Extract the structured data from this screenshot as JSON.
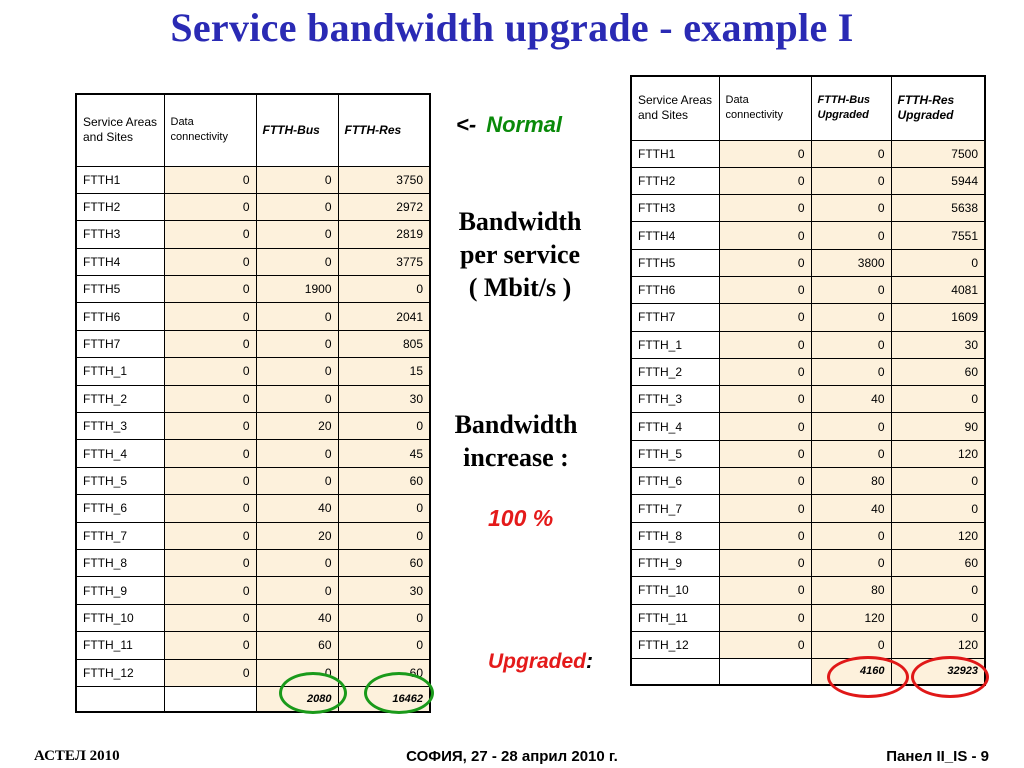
{
  "title": "Service bandwidth upgrade - example I",
  "left_table": {
    "headers": [
      "Service Areas and Sites",
      "Data connectivity",
      "FTTH-Bus",
      "FTTH-Res"
    ],
    "rows": [
      [
        "FTTH1",
        "0",
        "0",
        "3750"
      ],
      [
        "FTTH2",
        "0",
        "0",
        "2972"
      ],
      [
        "FTTH3",
        "0",
        "0",
        "2819"
      ],
      [
        "FTTH4",
        "0",
        "0",
        "3775"
      ],
      [
        "FTTH5",
        "0",
        "1900",
        "0"
      ],
      [
        "FTTH6",
        "0",
        "0",
        "2041"
      ],
      [
        "FTTH7",
        "0",
        "0",
        "805"
      ],
      [
        "FTTH_1",
        "0",
        "0",
        "15"
      ],
      [
        "FTTH_2",
        "0",
        "0",
        "30"
      ],
      [
        "FTTH_3",
        "0",
        "20",
        "0"
      ],
      [
        "FTTH_4",
        "0",
        "0",
        "45"
      ],
      [
        "FTTH_5",
        "0",
        "0",
        "60"
      ],
      [
        "FTTH_6",
        "0",
        "40",
        "0"
      ],
      [
        "FTTH_7",
        "0",
        "20",
        "0"
      ],
      [
        "FTTH_8",
        "0",
        "0",
        "60"
      ],
      [
        "FTTH_9",
        "0",
        "0",
        "30"
      ],
      [
        "FTTH_10",
        "0",
        "40",
        "0"
      ],
      [
        "FTTH_11",
        "0",
        "60",
        "0"
      ],
      [
        "FTTH_12",
        "0",
        "0",
        "60"
      ]
    ],
    "totals": [
      "",
      "",
      "2080",
      "16462"
    ]
  },
  "right_table": {
    "headers": [
      "Service Areas and Sites",
      "Data connectivity",
      "FTTH-Bus Upgraded",
      "FTTH-Res Upgraded"
    ],
    "rows": [
      [
        "FTTH1",
        "0",
        "0",
        "7500"
      ],
      [
        "FTTH2",
        "0",
        "0",
        "5944"
      ],
      [
        "FTTH3",
        "0",
        "0",
        "5638"
      ],
      [
        "FTTH4",
        "0",
        "0",
        "7551"
      ],
      [
        "FTTH5",
        "0",
        "3800",
        "0"
      ],
      [
        "FTTH6",
        "0",
        "0",
        "4081"
      ],
      [
        "FTTH7",
        "0",
        "0",
        "1609"
      ],
      [
        "FTTH_1",
        "0",
        "0",
        "30"
      ],
      [
        "FTTH_2",
        "0",
        "0",
        "60"
      ],
      [
        "FTTH_3",
        "0",
        "40",
        "0"
      ],
      [
        "FTTH_4",
        "0",
        "0",
        "90"
      ],
      [
        "FTTH_5",
        "0",
        "0",
        "120"
      ],
      [
        "FTTH_6",
        "0",
        "80",
        "0"
      ],
      [
        "FTTH_7",
        "0",
        "40",
        "0"
      ],
      [
        "FTTH_8",
        "0",
        "0",
        "120"
      ],
      [
        "FTTH_9",
        "0",
        "0",
        "60"
      ],
      [
        "FTTH_10",
        "0",
        "80",
        "0"
      ],
      [
        "FTTH_11",
        "0",
        "120",
        "0"
      ],
      [
        "FTTH_12",
        "0",
        "0",
        "120"
      ]
    ],
    "totals": [
      "",
      "",
      "4160",
      "32923"
    ]
  },
  "annotations": {
    "arrow": "<-",
    "normal": "Normal",
    "bandwidth_line1": "Bandwidth",
    "bandwidth_line2": "per service",
    "bandwidth_line3": "( Mbit/s )",
    "increase_line1": "Bandwidth",
    "increase_line2": "increase :",
    "percent": "100 %",
    "upgraded": "Upgraded",
    "upgraded_colon": ":"
  },
  "footer": {
    "left": "АСТЕЛ 2010",
    "center": "СОФИЯ, 27 - 28 април 2010 г.",
    "right": "Панел II_IS -  9"
  },
  "colors": {
    "title": "#2a2ab4",
    "cell_fill": "#fdf1dc",
    "normal_label": "#0a8a0a",
    "highlight_red": "#e41a1a",
    "circle_green": "#1a9a1a",
    "circle_red": "#e01818"
  }
}
